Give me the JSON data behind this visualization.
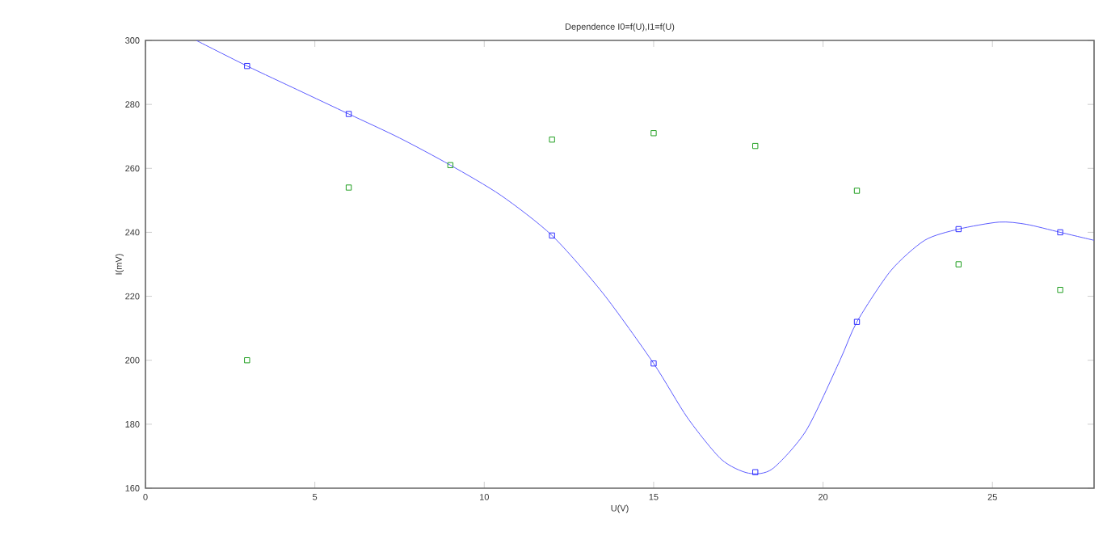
{
  "chart_data": {
    "type": "scatter",
    "title": "Dependence I0=f(U),I1=f(U)",
    "xlabel": "U(V)",
    "ylabel": "I(mV)",
    "xlim": [
      0,
      28
    ],
    "ylim": [
      160,
      300
    ],
    "xticks": [
      0,
      5,
      10,
      15,
      20,
      25
    ],
    "yticks": [
      160,
      180,
      200,
      220,
      240,
      260,
      280,
      300
    ],
    "grid": false,
    "marker": "square",
    "x": [
      3,
      6,
      9,
      12,
      15,
      18,
      21,
      24,
      27
    ],
    "series": [
      {
        "type": "line",
        "marker": "none",
        "color": "#5a5aff",
        "x": [
          1.5,
          3,
          4.5,
          6,
          7.5,
          9,
          10.5,
          12,
          13.5,
          15,
          16,
          17,
          17.8,
          18.5,
          19.5,
          20.5,
          21,
          22,
          23,
          24,
          25.2,
          26,
          27,
          28
        ],
        "values": [
          300,
          292,
          284.5,
          277,
          269.5,
          261,
          251.5,
          239,
          221,
          199,
          182,
          169,
          164.7,
          166,
          178,
          200,
          212,
          228,
          237.5,
          241,
          243.2,
          242.5,
          240,
          237.5
        ]
      },
      {
        "color": "#3030ff",
        "values": [
          292,
          277,
          null,
          239,
          199,
          165,
          212,
          241,
          240
        ]
      },
      {
        "color": "#22a022",
        "values": [
          200,
          254,
          261,
          269,
          271,
          267,
          253,
          230,
          222
        ]
      }
    ]
  }
}
